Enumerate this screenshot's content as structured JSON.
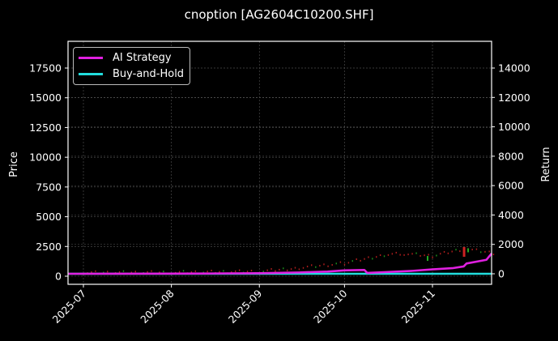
{
  "chart_data": {
    "type": "line",
    "title": "cnoption [AG2604C10200.SHF]",
    "xlabel": "",
    "ylabel": "Price",
    "y2label": "Return",
    "x_ticks": [
      "2025-07",
      "2025-08",
      "2025-09",
      "2025-10",
      "2025-11"
    ],
    "y_ticks": [
      0,
      2500,
      5000,
      7500,
      10000,
      12500,
      15000,
      17500
    ],
    "y2_ticks": [
      0,
      2000,
      4000,
      6000,
      8000,
      10000,
      12000,
      14000
    ],
    "ylim": [
      -600,
      19600
    ],
    "y2lim": [
      -700,
      15700
    ],
    "grid": true,
    "legend_position": "upper left",
    "series": [
      {
        "name": "AI Strategy",
        "axis": "right",
        "color": "#e020e0",
        "x": [
          "2025-06-25",
          "2025-07-15",
          "2025-08-01",
          "2025-08-15",
          "2025-09-01",
          "2025-09-15",
          "2025-09-25",
          "2025-10-01",
          "2025-10-08",
          "2025-10-09",
          "2025-10-15",
          "2025-10-25",
          "2025-11-01",
          "2025-11-08",
          "2025-11-12",
          "2025-11-13",
          "2025-11-20",
          "2025-11-24"
        ],
        "values": [
          0,
          5,
          10,
          20,
          40,
          90,
          150,
          230,
          260,
          60,
          110,
          200,
          300,
          380,
          500,
          700,
          950,
          1380
        ]
      },
      {
        "name": "Buy-and-Hold",
        "axis": "right",
        "color": "#22dddd",
        "x": [
          "2025-06-25",
          "2025-11-24"
        ],
        "values": [
          0,
          0
        ]
      },
      {
        "name": "Price (candles)",
        "axis": "left",
        "color_up": "#22aa22",
        "color_down": "#cc2222",
        "x": [
          "2025-07-01",
          "2025-08-01",
          "2025-09-01",
          "2025-09-15",
          "2025-10-01",
          "2025-10-15",
          "2025-10-22",
          "2025-11-01",
          "2025-11-12",
          "2025-11-24"
        ],
        "values": [
          300,
          320,
          400,
          700,
          1100,
          1800,
          1900,
          1700,
          2300,
          1900
        ]
      }
    ]
  }
}
